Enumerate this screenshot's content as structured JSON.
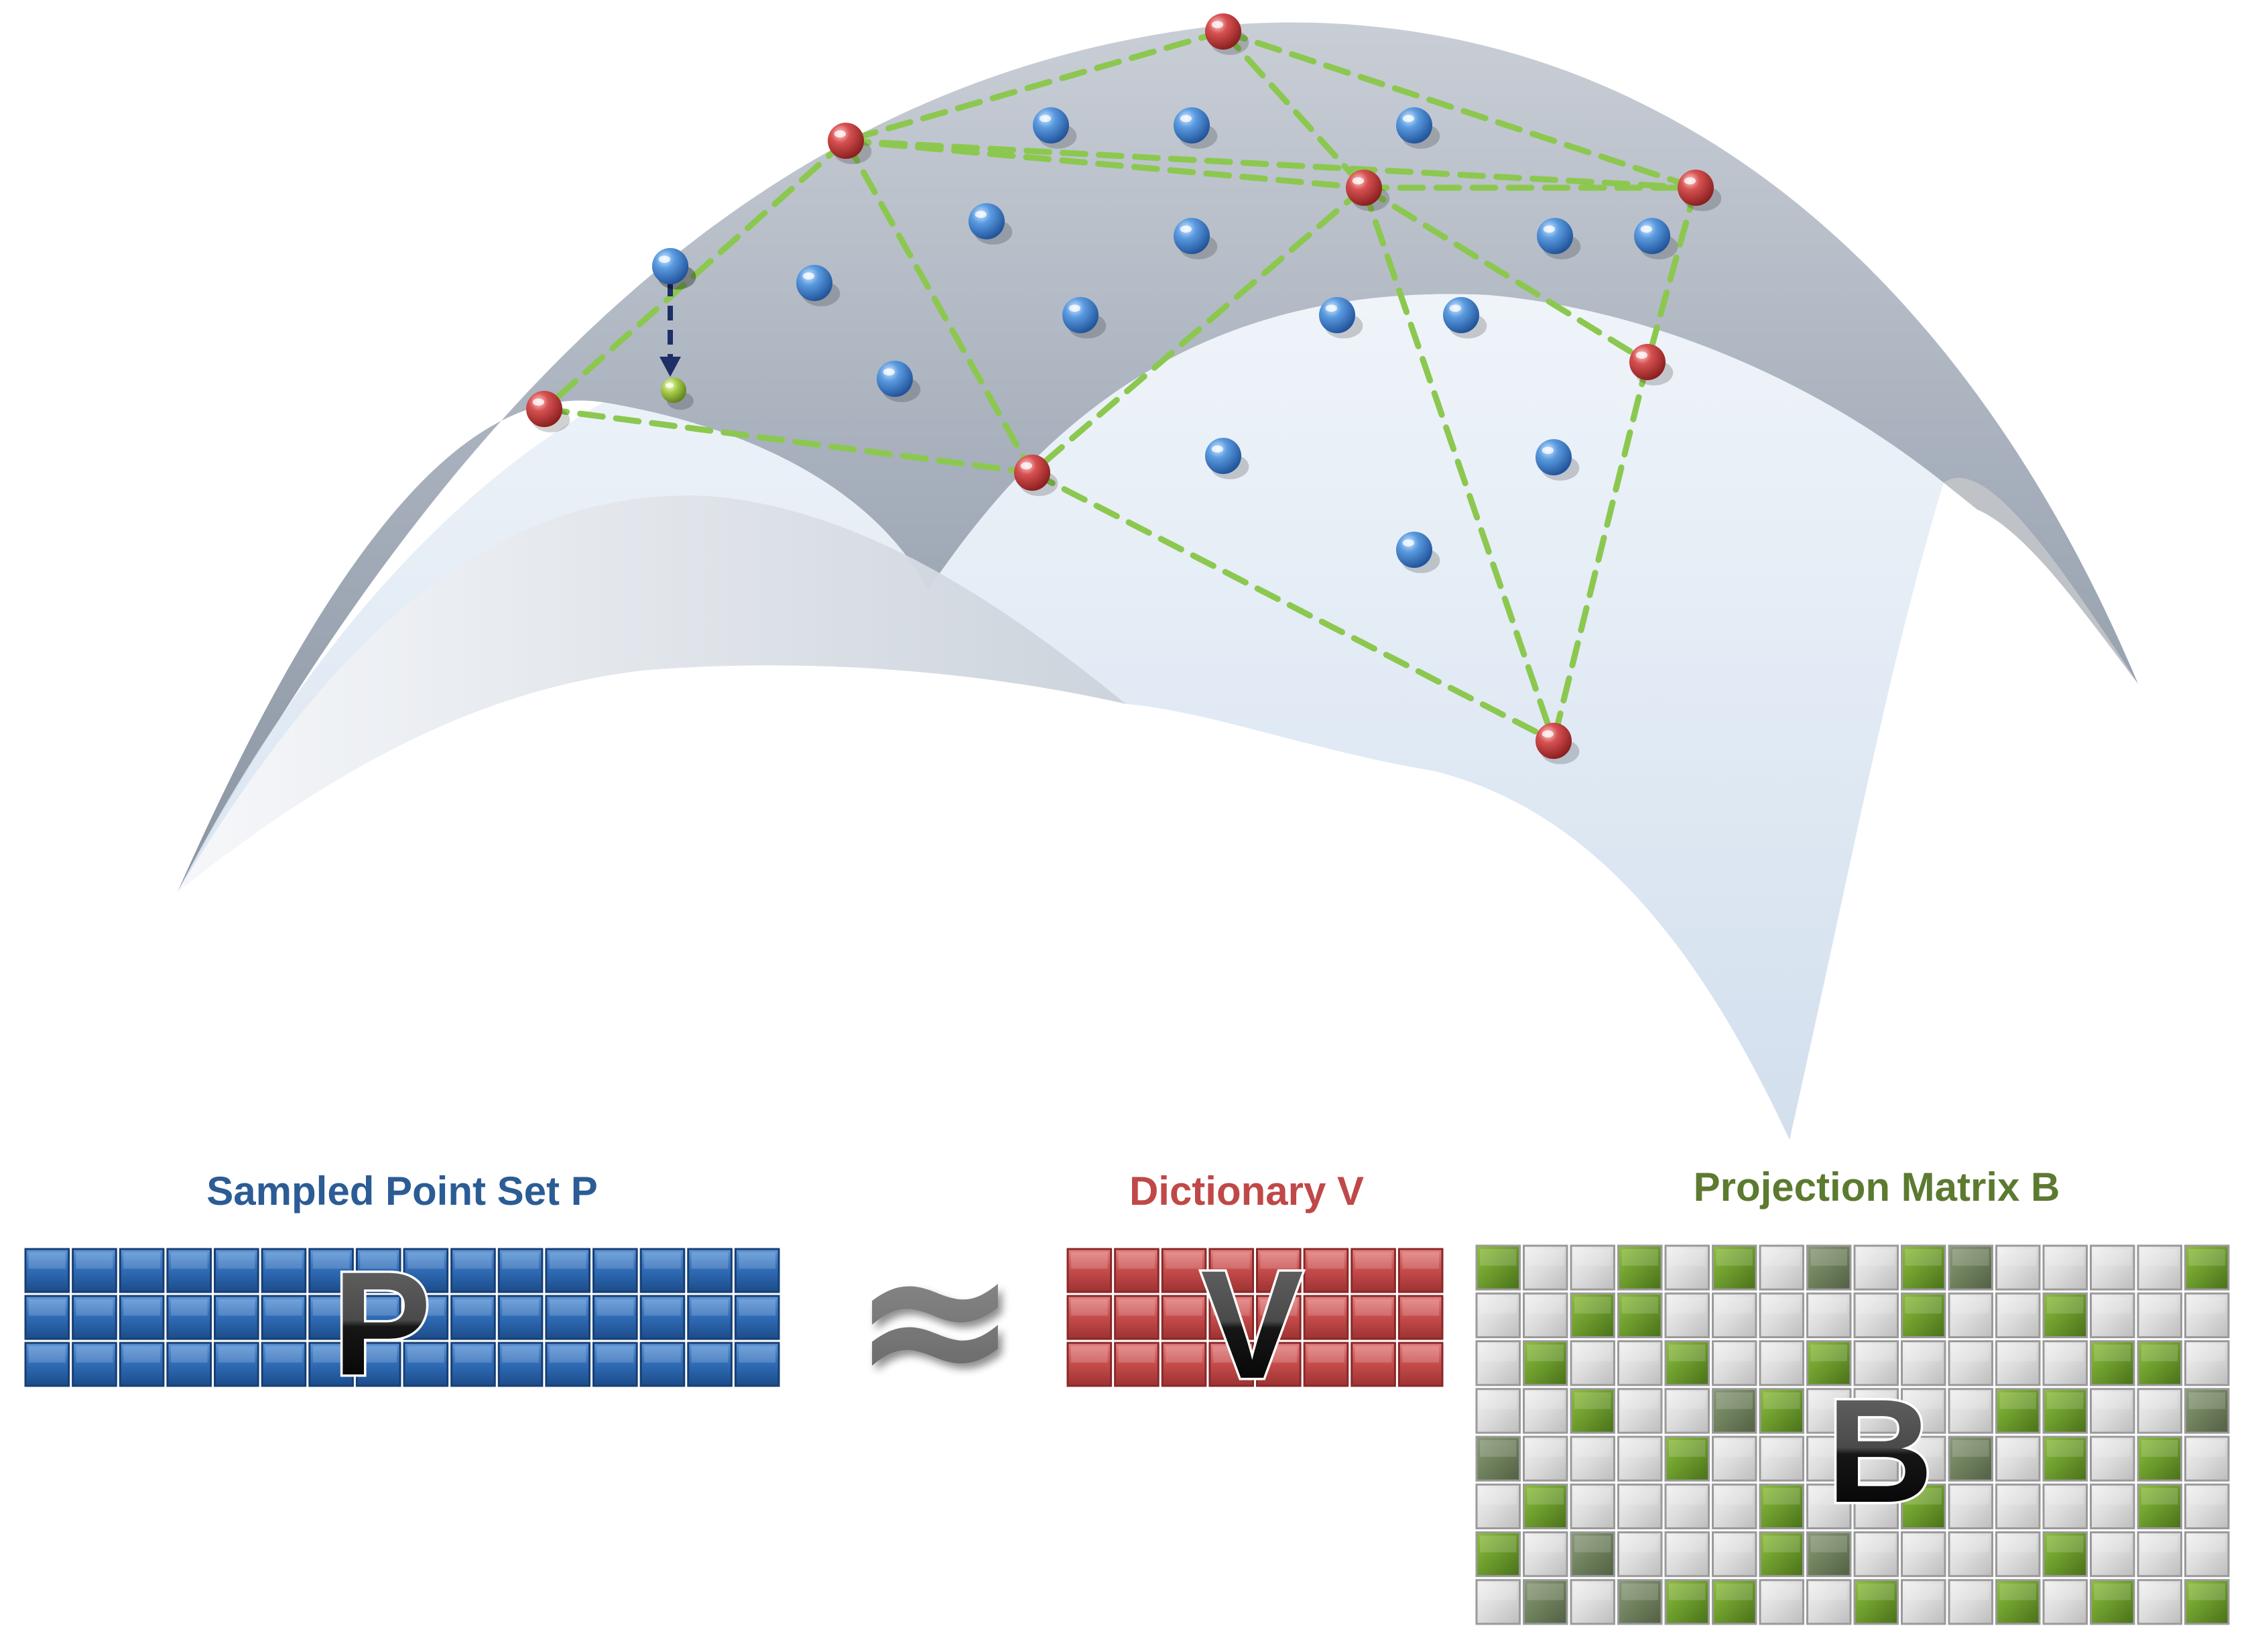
{
  "labels": {
    "point_set": "Sampled Point Set P",
    "dictionary": "Dictionary V",
    "projection": "Projection Matrix B"
  },
  "matrix_letters": {
    "p": "P",
    "v": "V",
    "b": "B"
  },
  "approx_symbol": "≈",
  "colors": {
    "sample_point": "#3a7dc8",
    "dictionary_point": "#c43c3c",
    "projected_point": "#98c040",
    "mesh_edge": "#8cc850",
    "projection_arrow": "#1e2e66",
    "matrix_p": "#2f6bb5",
    "matrix_v": "#c64b4b",
    "matrix_b_on": "#6b9a2c",
    "matrix_b_off": "#dcdcdc",
    "point_set_text": "#2b5c95",
    "dictionary_text": "#c04848",
    "projection_text": "#5c7a30"
  },
  "matrices": {
    "p": {
      "rows": 3,
      "cols": 16
    },
    "v": {
      "rows": 3,
      "cols": 8
    },
    "b": {
      "rows": 8,
      "cols": 16,
      "pattern": [
        [
          1,
          0,
          0,
          1,
          0,
          1,
          0,
          2,
          0,
          1,
          2,
          0,
          0,
          0,
          0,
          1
        ],
        [
          0,
          0,
          1,
          1,
          0,
          0,
          0,
          0,
          0,
          1,
          0,
          0,
          1,
          0,
          0,
          0
        ],
        [
          0,
          1,
          0,
          0,
          1,
          0,
          0,
          1,
          0,
          0,
          0,
          0,
          0,
          1,
          1,
          0
        ],
        [
          0,
          0,
          1,
          0,
          0,
          2,
          1,
          0,
          0,
          0,
          0,
          1,
          1,
          0,
          0,
          2
        ],
        [
          2,
          0,
          0,
          0,
          1,
          0,
          0,
          0,
          0,
          0,
          2,
          0,
          1,
          0,
          1,
          0
        ],
        [
          0,
          1,
          0,
          0,
          0,
          0,
          1,
          0,
          0,
          1,
          0,
          0,
          0,
          0,
          1,
          0
        ],
        [
          1,
          0,
          2,
          0,
          0,
          0,
          1,
          2,
          0,
          0,
          0,
          0,
          1,
          0,
          0,
          0
        ],
        [
          0,
          2,
          0,
          2,
          1,
          1,
          0,
          0,
          1,
          0,
          0,
          1,
          0,
          1,
          0,
          1
        ]
      ]
    }
  }
}
